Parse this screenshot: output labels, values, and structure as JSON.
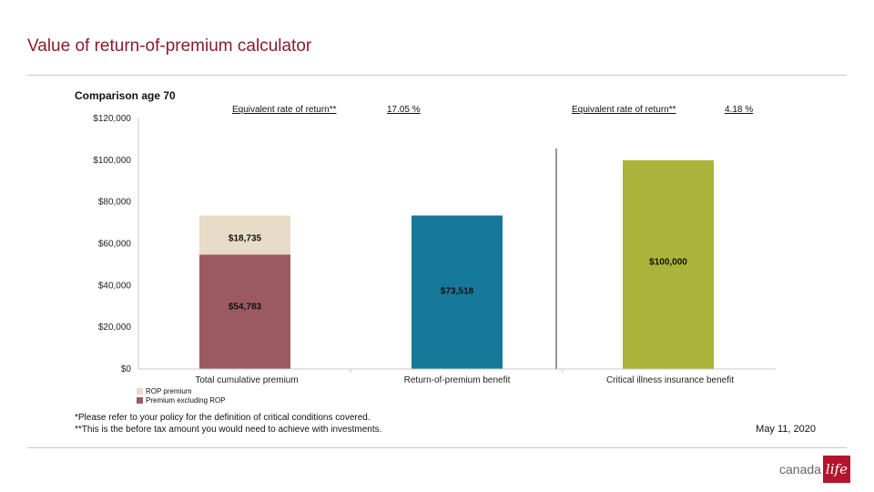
{
  "page": {
    "title": "Value of return-of-premium calculator"
  },
  "panel": {
    "heading": "Comparison age 70",
    "rate_left": {
      "label": "Equivalent rate of return**",
      "value": "17.05 %"
    },
    "rate_right": {
      "label": "Equivalent rate of return**",
      "value": "4.18 %"
    }
  },
  "chart_data": {
    "type": "bar",
    "stacked": true,
    "categories": [
      "Total cumulative premium",
      "Return-of-premium benefit",
      "Critical illness insurance benefit"
    ],
    "y_ticks": [
      "$120,000",
      "$100,000",
      "$80,000",
      "$60,000",
      "$40,000",
      "$20,000",
      "$0"
    ],
    "ylim": [
      0,
      120000
    ],
    "grid": false,
    "series": [
      {
        "name": "Premium excluding ROP",
        "color": "#9b5a62",
        "values": [
          54783,
          null,
          null
        ],
        "labels": [
          "$54,783",
          "",
          ""
        ]
      },
      {
        "name": "ROP premium",
        "color": "#e6dcc8",
        "values": [
          18735,
          null,
          null
        ],
        "labels": [
          "$18,735",
          "",
          ""
        ]
      },
      {
        "color": "#17799a",
        "values": [
          null,
          73518,
          null
        ],
        "labels": [
          "",
          "$73,518",
          ""
        ]
      },
      {
        "color": "#aab43a",
        "values": [
          null,
          null,
          100000
        ],
        "labels": [
          "",
          "",
          "$100,000"
        ]
      }
    ],
    "legend": [
      {
        "name": "ROP premium",
        "color": "#e6dcc8"
      },
      {
        "name": "Premium excluding ROP",
        "color": "#9b5a62"
      }
    ],
    "legend_position": "bottom-left"
  },
  "footnotes": {
    "line1": "*Please refer to your policy for the definition of critical conditions covered.",
    "line2": "**This is the before tax amount you would need to achieve with investments."
  },
  "date": "May 11, 2020",
  "logo": {
    "word": "canada",
    "mark": "life"
  }
}
